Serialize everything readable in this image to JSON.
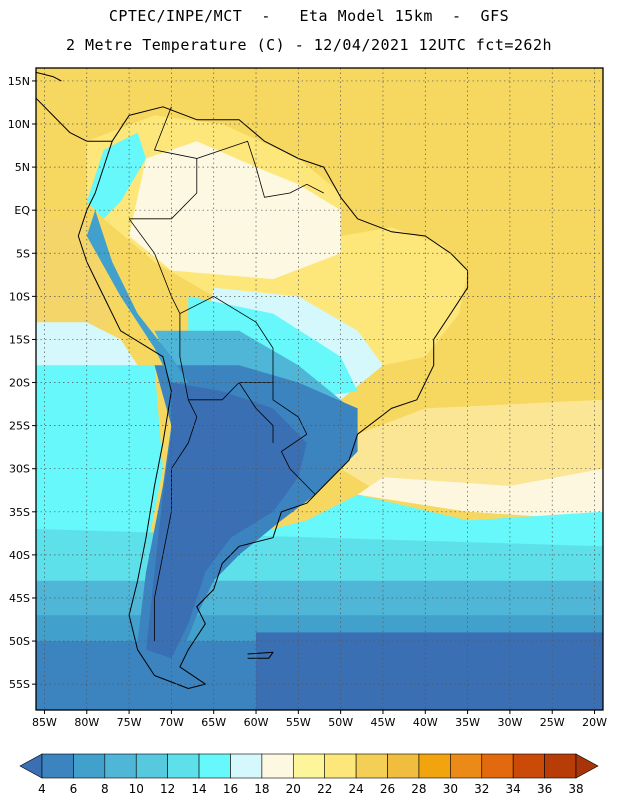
{
  "header": {
    "line1": "CPTEC/INPE/MCT  -   Eta Model 15km  -  GFS",
    "line2": "2 Metre Temperature (C) - 12/04/2021 12UTC fct=262h"
  },
  "axes": {
    "lat_ticks": [
      {
        "lat": 15,
        "label": "15N"
      },
      {
        "lat": 10,
        "label": "10N"
      },
      {
        "lat": 5,
        "label": "5N"
      },
      {
        "lat": 0,
        "label": "EQ"
      },
      {
        "lat": -5,
        "label": "5S"
      },
      {
        "lat": -10,
        "label": "10S"
      },
      {
        "lat": -15,
        "label": "15S"
      },
      {
        "lat": -20,
        "label": "20S"
      },
      {
        "lat": -25,
        "label": "25S"
      },
      {
        "lat": -30,
        "label": "30S"
      },
      {
        "lat": -35,
        "label": "35S"
      },
      {
        "lat": -40,
        "label": "40S"
      },
      {
        "lat": -45,
        "label": "45S"
      },
      {
        "lat": -50,
        "label": "50S"
      },
      {
        "lat": -55,
        "label": "55S"
      }
    ],
    "lon_ticks": [
      {
        "lon": -85,
        "label": "85W"
      },
      {
        "lon": -80,
        "label": "80W"
      },
      {
        "lon": -75,
        "label": "75W"
      },
      {
        "lon": -70,
        "label": "70W"
      },
      {
        "lon": -65,
        "label": "65W"
      },
      {
        "lon": -60,
        "label": "60W"
      },
      {
        "lon": -55,
        "label": "55W"
      },
      {
        "lon": -50,
        "label": "50W"
      },
      {
        "lon": -45,
        "label": "45W"
      },
      {
        "lon": -40,
        "label": "40W"
      },
      {
        "lon": -35,
        "label": "35W"
      },
      {
        "lon": -30,
        "label": "30W"
      },
      {
        "lon": -25,
        "label": "25W"
      },
      {
        "lon": -20,
        "label": "20W"
      }
    ]
  },
  "colorbar": {
    "labels": [
      "4",
      "6",
      "8",
      "10",
      "12",
      "14",
      "16",
      "18",
      "20",
      "22",
      "24",
      "26",
      "28",
      "30",
      "32",
      "34",
      "36",
      "38"
    ],
    "colors": [
      "#3a6fb3",
      "#3b84c0",
      "#41a0cc",
      "#4fb6d8",
      "#57c9df",
      "#5ee0ea",
      "#66f8fb",
      "#d4f8fc",
      "#fdf8e2",
      "#fdf59a",
      "#fde77a",
      "#f3d055",
      "#f0bd3e",
      "#f2a40e",
      "#ec8a18",
      "#e2690d",
      "#cb4a08",
      "#b73c08",
      "#a8340a"
    ]
  },
  "regions": [
    {
      "name": "ocean-north-warm",
      "color": "#f6d860",
      "poly": [
        [
          -86,
          16.5
        ],
        [
          -19,
          16.5
        ],
        [
          -19,
          -26
        ],
        [
          -38,
          -27
        ],
        [
          -40,
          -20
        ],
        [
          -35,
          -8
        ],
        [
          -50,
          0
        ],
        [
          -60,
          8
        ],
        [
          -70,
          12
        ],
        [
          -78,
          8
        ],
        [
          -82,
          2
        ],
        [
          -86,
          0
        ]
      ]
    },
    {
      "name": "ocean-atlantic-mid",
      "color": "#fbe695",
      "poly": [
        [
          -19,
          -22
        ],
        [
          -19,
          -33
        ],
        [
          -30,
          -35
        ],
        [
          -45,
          -33
        ],
        [
          -50,
          -30
        ],
        [
          -48,
          -26
        ],
        [
          -40,
          -23
        ]
      ]
    },
    {
      "name": "ocean-atlantic-light",
      "color": "#fdf7e0",
      "poly": [
        [
          -19,
          -30
        ],
        [
          -19,
          -36
        ],
        [
          -35,
          -35
        ],
        [
          -48,
          -33
        ],
        [
          -45,
          -31
        ],
        [
          -30,
          -32
        ]
      ]
    },
    {
      "name": "ocean-pacific-warm",
      "color": "#f4d56a",
      "poly": [
        [
          -86,
          -1
        ],
        [
          -80,
          -1
        ],
        [
          -78,
          -8
        ],
        [
          -77,
          -13
        ],
        [
          -80,
          -16
        ],
        [
          -86,
          -16
        ]
      ]
    },
    {
      "name": "ocean-pacific-light",
      "color": "#d4f8fc",
      "poly": [
        [
          -86,
          -13
        ],
        [
          -80,
          -13
        ],
        [
          -76,
          -15
        ],
        [
          -74,
          -18
        ],
        [
          -80,
          -20
        ],
        [
          -86,
          -20
        ]
      ]
    },
    {
      "name": "ocean-south-cyan",
      "color": "#66f8fb",
      "poly": [
        [
          -86,
          -18
        ],
        [
          -72,
          -18
        ],
        [
          -71,
          -30
        ],
        [
          -73,
          -40
        ],
        [
          -62,
          -38
        ],
        [
          -54,
          -36
        ],
        [
          -48,
          -33
        ],
        [
          -35,
          -36
        ],
        [
          -19,
          -35
        ],
        [
          -19,
          -40
        ],
        [
          -86,
          -40
        ]
      ]
    },
    {
      "name": "ocean-south-teal",
      "color": "#5ee0ea",
      "poly": [
        [
          -86,
          -37
        ],
        [
          -19,
          -39
        ],
        [
          -19,
          -44
        ],
        [
          -86,
          -44
        ]
      ]
    },
    {
      "name": "ocean-south-12",
      "color": "#4fb6d8",
      "poly": [
        [
          -86,
          -43
        ],
        [
          -19,
          -43
        ],
        [
          -19,
          -48
        ],
        [
          -86,
          -48
        ]
      ]
    },
    {
      "name": "ocean-south-10",
      "color": "#41a0cc",
      "poly": [
        [
          -86,
          -47
        ],
        [
          -19,
          -47
        ],
        [
          -19,
          -51
        ],
        [
          -86,
          -51
        ]
      ]
    },
    {
      "name": "ocean-south-8",
      "color": "#3b84c0",
      "poly": [
        [
          -86,
          -50
        ],
        [
          -19,
          -50
        ],
        [
          -19,
          -58
        ],
        [
          -86,
          -58
        ]
      ]
    },
    {
      "name": "ocean-south-6",
      "color": "#3a6fb3",
      "poly": [
        [
          -60,
          -49
        ],
        [
          -19,
          -49
        ],
        [
          -19,
          -58
        ],
        [
          -60,
          -58
        ]
      ]
    },
    {
      "name": "land-north-warm",
      "color": "#fde77a",
      "poly": [
        [
          -80,
          8
        ],
        [
          -72,
          11
        ],
        [
          -64,
          10
        ],
        [
          -55,
          6
        ],
        [
          -50,
          2
        ],
        [
          -50,
          -3
        ],
        [
          -44,
          -2
        ],
        [
          -38,
          -4
        ],
        [
          -35,
          -7
        ],
        [
          -36,
          -12
        ],
        [
          -40,
          -17
        ],
        [
          -45,
          -18
        ],
        [
          -55,
          -15
        ],
        [
          -65,
          -10
        ],
        [
          -72,
          -6
        ],
        [
          -78,
          -1
        ],
        [
          -80,
          1
        ]
      ]
    },
    {
      "name": "land-north-light",
      "color": "#fdf8e2",
      "poly": [
        [
          -73,
          6
        ],
        [
          -67,
          8
        ],
        [
          -60,
          5
        ],
        [
          -55,
          3
        ],
        [
          -50,
          0
        ],
        [
          -50,
          -5
        ],
        [
          -58,
          -8
        ],
        [
          -70,
          -7
        ],
        [
          -75,
          -3
        ]
      ]
    },
    {
      "name": "land-central-20",
      "color": "#d4f8fc",
      "poly": [
        [
          -65,
          -9
        ],
        [
          -55,
          -10
        ],
        [
          -48,
          -14
        ],
        [
          -45,
          -18
        ],
        [
          -50,
          -22
        ],
        [
          -60,
          -20
        ],
        [
          -66,
          -14
        ]
      ]
    },
    {
      "name": "land-central-16",
      "color": "#66f8fb",
      "poly": [
        [
          -68,
          -10
        ],
        [
          -58,
          -12
        ],
        [
          -50,
          -17
        ],
        [
          -48,
          -21
        ],
        [
          -55,
          -22
        ],
        [
          -62,
          -20
        ],
        [
          -68,
          -15
        ]
      ]
    },
    {
      "name": "land-central-12",
      "color": "#4fb6d8",
      "poly": [
        [
          -72,
          -14
        ],
        [
          -62,
          -14
        ],
        [
          -55,
          -18
        ],
        [
          -50,
          -22
        ],
        [
          -48,
          -24
        ],
        [
          -55,
          -24
        ],
        [
          -65,
          -20
        ],
        [
          -70,
          -18
        ]
      ]
    },
    {
      "name": "land-south-8",
      "color": "#3b84c0",
      "poly": [
        [
          -72,
          -18
        ],
        [
          -62,
          -18
        ],
        [
          -55,
          -20
        ],
        [
          -48,
          -23
        ],
        [
          -48,
          -28
        ],
        [
          -53,
          -33
        ],
        [
          -57,
          -36
        ],
        [
          -62,
          -40
        ],
        [
          -65,
          -43
        ],
        [
          -67,
          -47
        ],
        [
          -69,
          -52
        ],
        [
          -72,
          -54
        ],
        [
          -74,
          -50
        ],
        [
          -73,
          -42
        ],
        [
          -71,
          -32
        ],
        [
          -70,
          -25
        ]
      ]
    },
    {
      "name": "land-south-6",
      "color": "#3a6fb3",
      "poly": [
        [
          -70,
          -20
        ],
        [
          -64,
          -21
        ],
        [
          -58,
          -23
        ],
        [
          -54,
          -27
        ],
        [
          -55,
          -31
        ],
        [
          -58,
          -35
        ],
        [
          -63,
          -38
        ],
        [
          -66,
          -42
        ],
        [
          -68,
          -48
        ],
        [
          -70,
          -52
        ],
        [
          -73,
          -51
        ],
        [
          -72,
          -42
        ],
        [
          -71,
          -33
        ],
        [
          -70,
          -26
        ]
      ]
    },
    {
      "name": "andes-cold",
      "color": "#41a0cc",
      "poly": [
        [
          -79,
          0
        ],
        [
          -77,
          -6
        ],
        [
          -74,
          -12
        ],
        [
          -70,
          -17
        ],
        [
          -68,
          -20
        ],
        [
          -70,
          -20
        ],
        [
          -72,
          -16
        ],
        [
          -76,
          -10
        ],
        [
          -80,
          -3
        ]
      ]
    },
    {
      "name": "andes-north-cold",
      "color": "#66f8fb",
      "poly": [
        [
          -78,
          7
        ],
        [
          -74,
          9
        ],
        [
          -73,
          6
        ],
        [
          -76,
          1
        ],
        [
          -78,
          -1
        ],
        [
          -80,
          1
        ]
      ]
    }
  ],
  "coastlines": [
    [
      [
        -77,
        8
      ],
      [
        -75,
        11
      ],
      [
        -71,
        12
      ],
      [
        -67,
        10.5
      ],
      [
        -62,
        10.5
      ],
      [
        -59,
        8
      ],
      [
        -55,
        6
      ],
      [
        -52,
        5
      ],
      [
        -50,
        1.5
      ],
      [
        -48,
        -1
      ],
      [
        -44,
        -2.5
      ],
      [
        -40,
        -3
      ],
      [
        -37,
        -5
      ],
      [
        -35,
        -7
      ],
      [
        -35,
        -9
      ],
      [
        -37,
        -12
      ],
      [
        -39,
        -15
      ],
      [
        -39,
        -18
      ],
      [
        -40,
        -20
      ],
      [
        -41,
        -22
      ],
      [
        -44,
        -23
      ],
      [
        -48,
        -26
      ],
      [
        -49,
        -29
      ],
      [
        -52,
        -32
      ],
      [
        -54,
        -34
      ],
      [
        -57,
        -35
      ],
      [
        -58,
        -38
      ],
      [
        -62,
        -39
      ],
      [
        -64,
        -41
      ],
      [
        -65,
        -44
      ],
      [
        -67,
        -46
      ],
      [
        -66,
        -48
      ],
      [
        -68,
        -51
      ],
      [
        -69,
        -53
      ],
      [
        -66,
        -55
      ],
      [
        -68,
        -55.5
      ],
      [
        -72,
        -54
      ],
      [
        -74,
        -51
      ],
      [
        -75,
        -47
      ],
      [
        -74,
        -43
      ],
      [
        -73,
        -38
      ],
      [
        -72,
        -32
      ],
      [
        -71,
        -27
      ],
      [
        -70,
        -21
      ],
      [
        -71,
        -17
      ],
      [
        -76,
        -14
      ],
      [
        -78,
        -10
      ],
      [
        -80,
        -6
      ],
      [
        -81,
        -3
      ],
      [
        -80,
        0
      ],
      [
        -79,
        2
      ],
      [
        -78,
        5
      ],
      [
        -77,
        8
      ]
    ],
    [
      [
        -86,
        13
      ],
      [
        -84,
        11
      ],
      [
        -82,
        9
      ],
      [
        -80,
        8
      ],
      [
        -77,
        8
      ]
    ],
    [
      [
        -86,
        16
      ],
      [
        -84,
        15.5
      ],
      [
        -83,
        15
      ]
    ],
    [
      [
        -61,
        -51.5
      ],
      [
        -58,
        -51.3
      ],
      [
        -58.5,
        -52
      ],
      [
        -61,
        -52
      ]
    ]
  ],
  "borders": [
    [
      [
        -70,
        12
      ],
      [
        -72,
        7
      ],
      [
        -67,
        6
      ],
      [
        -67,
        2
      ],
      [
        -70,
        -1
      ],
      [
        -75,
        -1
      ]
    ],
    [
      [
        -67,
        6
      ],
      [
        -61,
        8
      ],
      [
        -60,
        5
      ],
      [
        -59,
        1.5
      ],
      [
        -56,
        2
      ],
      [
        -54,
        3
      ],
      [
        -52,
        2
      ]
    ],
    [
      [
        -75,
        -1
      ],
      [
        -72,
        -5
      ],
      [
        -70,
        -10
      ],
      [
        -69,
        -12
      ],
      [
        -65,
        -10
      ],
      [
        -60,
        -13
      ],
      [
        -58,
        -16
      ],
      [
        -58,
        -20
      ]
    ],
    [
      [
        -69,
        -12
      ],
      [
        -69,
        -17
      ],
      [
        -68,
        -22
      ],
      [
        -64,
        -22
      ],
      [
        -62,
        -20
      ],
      [
        -58,
        -20
      ],
      [
        -58,
        -22
      ],
      [
        -55,
        -24
      ],
      [
        -54,
        -26
      ],
      [
        -57,
        -28
      ],
      [
        -56,
        -30
      ],
      [
        -53,
        -33
      ]
    ],
    [
      [
        -68,
        -22
      ],
      [
        -67,
        -24
      ],
      [
        -68,
        -27
      ],
      [
        -70,
        -30
      ],
      [
        -70,
        -35
      ],
      [
        -71,
        -40
      ],
      [
        -72,
        -45
      ],
      [
        -72,
        -50
      ]
    ],
    [
      [
        -62,
        -20
      ],
      [
        -60,
        -23
      ],
      [
        -58,
        -25
      ],
      [
        -58,
        -27
      ]
    ]
  ],
  "labels": {
    "lon_unit": "W",
    "lat_unit": "N/S"
  }
}
